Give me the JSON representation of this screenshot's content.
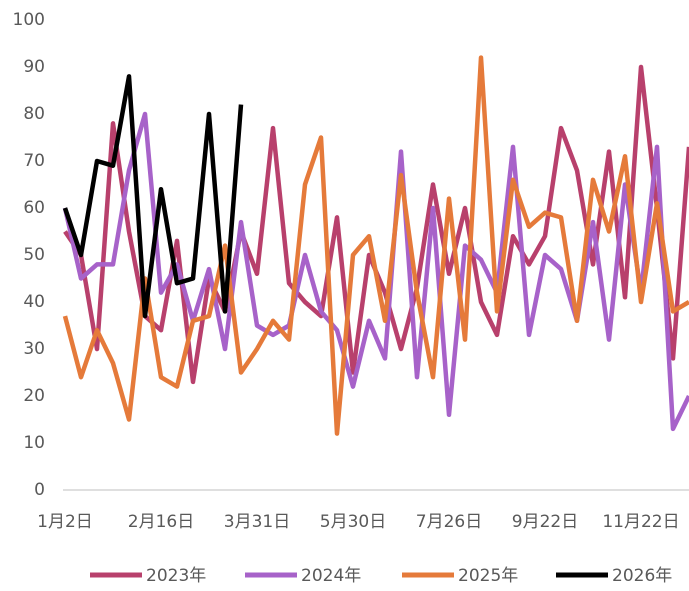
{
  "chart_data": {
    "type": "line",
    "categories": [
      "1月2日",
      null,
      null,
      null,
      null,
      null,
      "2月16日",
      null,
      null,
      null,
      null,
      null,
      "3月31日",
      null,
      null,
      null,
      null,
      null,
      "5月30日",
      null,
      null,
      null,
      null,
      null,
      "7月26日",
      null,
      null,
      null,
      null,
      null,
      "9月22日",
      null,
      null,
      null,
      null,
      null,
      "11月22日",
      null,
      null,
      null
    ],
    "series": [
      {
        "name": "2023年",
        "color": "#b8406c",
        "values": [
          55,
          50,
          30,
          78,
          55,
          37,
          34,
          53,
          23,
          45,
          38,
          55,
          46,
          77,
          44,
          40,
          37,
          58,
          25,
          50,
          42,
          30,
          43,
          65,
          46,
          60,
          40,
          33,
          54,
          48,
          54,
          77,
          68,
          48,
          72,
          41,
          90,
          60,
          28,
          73
        ]
      },
      {
        "name": "2024年",
        "color": "#a762c9",
        "values": [
          60,
          45,
          48,
          48,
          68,
          80,
          42,
          48,
          36,
          47,
          30,
          57,
          35,
          33,
          35,
          50,
          38,
          34,
          22,
          36,
          28,
          72,
          24,
          60,
          16,
          52,
          49,
          42,
          73,
          33,
          50,
          47,
          36,
          57,
          32,
          65,
          42,
          73,
          13,
          20
        ]
      },
      {
        "name": "2025年",
        "color": "#e57a3a",
        "values": [
          37,
          24,
          34,
          27,
          15,
          45,
          24,
          22,
          36,
          37,
          52,
          25,
          30,
          36,
          32,
          65,
          75,
          12,
          50,
          54,
          36,
          67,
          42,
          24,
          62,
          32,
          92,
          38,
          66,
          56,
          59,
          58,
          36,
          66,
          55,
          71,
          40,
          61,
          38,
          40
        ]
      },
      {
        "name": "2026年",
        "color": "#000000",
        "values": [
          60,
          50,
          70,
          69,
          88,
          37,
          64,
          44,
          45,
          80,
          38,
          82,
          null,
          null,
          null,
          null,
          null,
          null,
          null,
          null,
          null,
          null,
          null,
          null,
          null,
          null,
          null,
          null,
          null,
          null,
          null,
          null,
          null,
          null,
          null,
          null,
          null,
          null,
          null,
          null
        ]
      }
    ],
    "ylim": [
      0,
      100
    ],
    "yticks": [
      0,
      10,
      20,
      30,
      40,
      50,
      60,
      70,
      80,
      90,
      100
    ],
    "legend": "bottom"
  }
}
